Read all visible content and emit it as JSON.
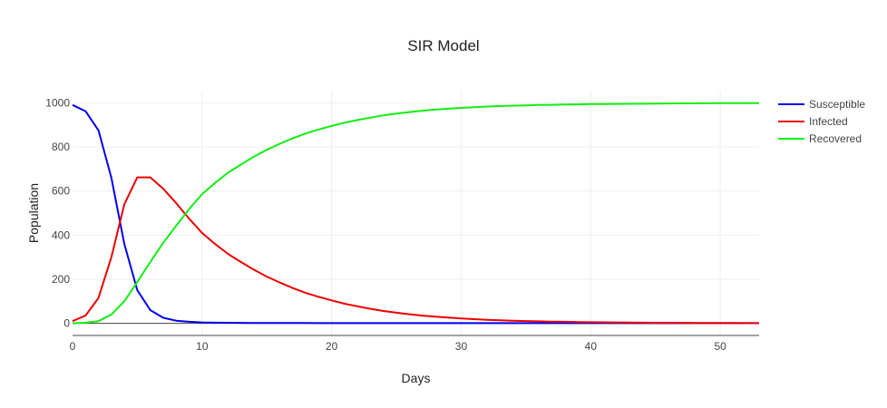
{
  "chart_data": {
    "type": "line",
    "title": "SIR Model",
    "xlabel": "Days",
    "ylabel": "Population",
    "xlim": [
      0,
      53
    ],
    "ylim": [
      -55,
      1055
    ],
    "xticks": [
      0,
      10,
      20,
      30,
      40,
      50
    ],
    "yticks": [
      0,
      200,
      400,
      600,
      800,
      1000
    ],
    "grid": true,
    "legend_position": "top-right",
    "x": [
      0,
      1,
      2,
      3,
      4,
      5,
      6,
      7,
      8,
      9,
      10,
      11,
      12,
      13,
      14,
      15,
      16,
      17,
      18,
      19,
      20,
      21,
      22,
      23,
      24,
      25,
      26,
      27,
      28,
      29,
      30,
      31,
      32,
      33,
      34,
      35,
      36,
      37,
      38,
      39,
      40,
      41,
      42,
      43,
      44,
      45,
      46,
      47,
      48,
      49,
      50,
      51,
      52,
      53
    ],
    "series": [
      {
        "name": "Susceptible",
        "color": "#0000ee",
        "values": [
          990,
          962,
          875,
          660,
          360,
          150,
          60,
          25,
          12,
          7,
          4,
          3,
          2.5,
          2,
          1.8,
          1.6,
          1.4,
          1.3,
          1.2,
          1.1,
          1,
          1,
          1,
          1,
          1,
          1,
          1,
          1,
          1,
          1,
          1,
          1,
          1,
          1,
          1,
          1,
          1,
          1,
          1,
          1,
          1,
          1,
          1,
          1,
          1,
          1,
          1,
          1,
          1,
          1,
          1,
          1,
          1,
          1
        ]
      },
      {
        "name": "Infected",
        "color": "#ee0000",
        "values": [
          10,
          35,
          115,
          300,
          540,
          662,
          662,
          610,
          545,
          475,
          410,
          360,
          315,
          278,
          243,
          212,
          185,
          160,
          138,
          120,
          104,
          89,
          77,
          66,
          56,
          48,
          41,
          35,
          30,
          26,
          22,
          19,
          16,
          14,
          12,
          10.5,
          9,
          8,
          7,
          6,
          5,
          4.5,
          4,
          3.5,
          3,
          2.7,
          2.4,
          2.1,
          1.9,
          1.7,
          1.5,
          1.3,
          1.1,
          1
        ]
      },
      {
        "name": "Recovered",
        "color": "#11ee11",
        "values": [
          0,
          3,
          10,
          40,
          100,
          188,
          278,
          365,
          443,
          518,
          586,
          637,
          683,
          720,
          756,
          787,
          814,
          839,
          861,
          879,
          895,
          910,
          922,
          933,
          943,
          951,
          958,
          964,
          969,
          973,
          977,
          980,
          983,
          985,
          987,
          988.5,
          990,
          991,
          992,
          993,
          994,
          994.5,
          995,
          995.5,
          996,
          996.5,
          997,
          997.3,
          997.6,
          997.9,
          998.1,
          998.3,
          998.5,
          998.7
        ]
      }
    ]
  }
}
